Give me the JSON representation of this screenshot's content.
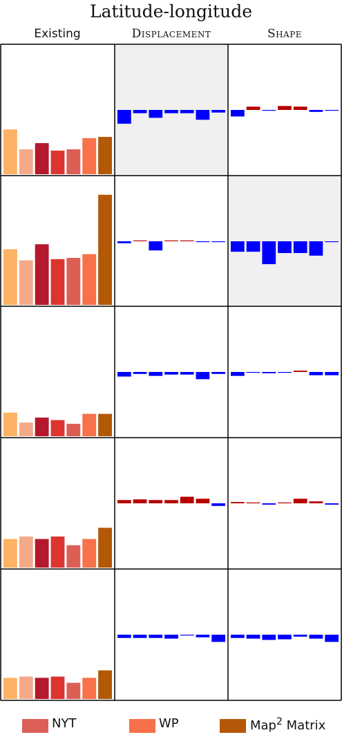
{
  "title": "Latitude-longitude",
  "columns": [
    "Existing",
    "Displacement",
    "Shape"
  ],
  "legend": [
    {
      "label": "NYT",
      "color": "#dc5f56"
    },
    {
      "label": "WP",
      "color": "#f7714a"
    },
    {
      "label": "Map",
      "sup": "2",
      "suffix": " Matrix",
      "color": "#b35806"
    }
  ],
  "colors": {
    "existing": [
      "#fdb264",
      "#f4a988",
      "#b5192e",
      "#dd3430",
      "#dc5f56",
      "#f7714a",
      "#b35806"
    ],
    "positive": "#b80000",
    "negative": "#0000ff",
    "highlight_bg": "#f0f0f0"
  },
  "chart_data": {
    "type": "bar",
    "layout": "small-multiples grid, 5 rows x 3 columns",
    "bars_per_panel": 7,
    "existing_scale": [
      0,
      1
    ],
    "diff_scale": [
      -1,
      1
    ],
    "rows": [
      {
        "existing": [
          0.36,
          0.2,
          0.25,
          0.19,
          0.2,
          0.29,
          0.3
        ],
        "displacement": [
          -0.21,
          -0.05,
          -0.12,
          -0.05,
          -0.05,
          -0.15,
          -0.04
        ],
        "shape": [
          -0.1,
          0.05,
          -0.01,
          0.06,
          0.05,
          -0.03,
          -0.01
        ],
        "highlight": "displacement"
      },
      {
        "existing": [
          0.45,
          0.36,
          0.49,
          0.37,
          0.38,
          0.41,
          0.89
        ],
        "displacement": [
          -0.03,
          0.01,
          -0.14,
          0.01,
          0.005,
          -0.01,
          -0.01
        ],
        "shape": [
          -0.16,
          -0.16,
          -0.35,
          -0.18,
          -0.18,
          -0.22,
          -0.01
        ],
        "highlight": "shape"
      },
      {
        "existing": [
          0.19,
          0.11,
          0.15,
          0.13,
          0.1,
          0.18,
          0.18
        ],
        "displacement": [
          -0.07,
          -0.03,
          -0.06,
          -0.04,
          -0.04,
          -0.11,
          -0.03
        ],
        "shape": [
          -0.06,
          -0.005,
          -0.02,
          -0.005,
          0.02,
          -0.05,
          -0.05
        ],
        "highlight": ""
      },
      {
        "existing": [
          0.23,
          0.25,
          0.23,
          0.25,
          0.18,
          0.23,
          0.32
        ],
        "displacement": [
          0.05,
          0.06,
          0.05,
          0.05,
          0.1,
          0.07,
          -0.04
        ],
        "shape": [
          0.02,
          0.01,
          -0.02,
          0.01,
          0.07,
          0.03,
          -0.02
        ],
        "highlight": ""
      },
      {
        "existing": [
          0.17,
          0.18,
          0.17,
          0.18,
          0.13,
          0.17,
          0.23
        ],
        "displacement": [
          -0.05,
          -0.05,
          -0.05,
          -0.06,
          -0.01,
          -0.04,
          -0.11
        ],
        "shape": [
          -0.05,
          -0.06,
          -0.08,
          -0.07,
          -0.03,
          -0.06,
          -0.11
        ],
        "highlight": ""
      }
    ]
  }
}
